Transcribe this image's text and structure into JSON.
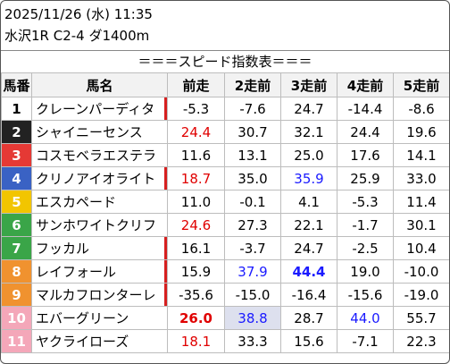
{
  "header": {
    "date_line": "2025/11/26 (水) 11:35",
    "race_line": "水沢1R C2-4 ダ1400m",
    "title": "＝＝＝スピード指数表＝＝＝"
  },
  "columns": [
    "馬番",
    "馬名",
    "前走",
    "2走前",
    "3走前",
    "4走前",
    "5走前"
  ],
  "rows": [
    {
      "num": "1",
      "name": "クレーンパーディタ",
      "bg": "#ffffff",
      "fg": "#000000",
      "mark": true,
      "vals": [
        {
          "v": "-5.3",
          "s": ""
        },
        {
          "v": "-7.6",
          "s": ""
        },
        {
          "v": "24.7",
          "s": ""
        },
        {
          "v": "-14.4",
          "s": ""
        },
        {
          "v": "-8.6",
          "s": ""
        }
      ]
    },
    {
      "num": "2",
      "name": "シャイニーセンス",
      "bg": "#222222",
      "fg": "#ffffff",
      "mark": false,
      "vals": [
        {
          "v": "24.4",
          "s": "red"
        },
        {
          "v": "30.7",
          "s": ""
        },
        {
          "v": "32.1",
          "s": ""
        },
        {
          "v": "24.4",
          "s": ""
        },
        {
          "v": "19.6",
          "s": ""
        }
      ]
    },
    {
      "num": "3",
      "name": "コスモベラエステラ",
      "bg": "#e53935",
      "fg": "#ffffff",
      "mark": false,
      "vals": [
        {
          "v": "11.6",
          "s": ""
        },
        {
          "v": "13.1",
          "s": ""
        },
        {
          "v": "25.0",
          "s": ""
        },
        {
          "v": "17.6",
          "s": ""
        },
        {
          "v": "14.1",
          "s": ""
        }
      ]
    },
    {
      "num": "4",
      "name": "クリノアイオライト",
      "bg": "#3a62c4",
      "fg": "#ffffff",
      "mark": true,
      "vals": [
        {
          "v": "18.7",
          "s": "red"
        },
        {
          "v": "35.0",
          "s": ""
        },
        {
          "v": "35.9",
          "s": "blue"
        },
        {
          "v": "25.9",
          "s": ""
        },
        {
          "v": "33.0",
          "s": ""
        }
      ]
    },
    {
      "num": "5",
      "name": "エスカペード",
      "bg": "#f2c500",
      "fg": "#ffffff",
      "mark": false,
      "vals": [
        {
          "v": "11.0",
          "s": ""
        },
        {
          "v": "-0.1",
          "s": ""
        },
        {
          "v": "4.1",
          "s": ""
        },
        {
          "v": "-5.3",
          "s": ""
        },
        {
          "v": "11.4",
          "s": ""
        }
      ]
    },
    {
      "num": "6",
      "name": "サンホワイトクリフ",
      "bg": "#3aa548",
      "fg": "#ffffff",
      "mark": false,
      "vals": [
        {
          "v": "24.6",
          "s": "red"
        },
        {
          "v": "27.3",
          "s": ""
        },
        {
          "v": "22.1",
          "s": ""
        },
        {
          "v": "-1.7",
          "s": ""
        },
        {
          "v": "30.1",
          "s": ""
        }
      ]
    },
    {
      "num": "7",
      "name": "フッカル",
      "bg": "#3aa548",
      "fg": "#ffffff",
      "mark": true,
      "vals": [
        {
          "v": "16.1",
          "s": ""
        },
        {
          "v": "-3.7",
          "s": ""
        },
        {
          "v": "24.7",
          "s": ""
        },
        {
          "v": "-2.5",
          "s": ""
        },
        {
          "v": "10.4",
          "s": ""
        }
      ]
    },
    {
      "num": "8",
      "name": "レイフォール",
      "bg": "#f0922f",
      "fg": "#ffffff",
      "mark": true,
      "vals": [
        {
          "v": "15.9",
          "s": ""
        },
        {
          "v": "37.9",
          "s": "blue"
        },
        {
          "v": "44.4",
          "s": "bluebold"
        },
        {
          "v": "19.0",
          "s": ""
        },
        {
          "v": "-10.0",
          "s": ""
        }
      ]
    },
    {
      "num": "9",
      "name": "マルカフロンターレ",
      "bg": "#f0922f",
      "fg": "#ffffff",
      "mark": true,
      "vals": [
        {
          "v": "-35.6",
          "s": ""
        },
        {
          "v": "-15.0",
          "s": ""
        },
        {
          "v": "-16.4",
          "s": ""
        },
        {
          "v": "-15.6",
          "s": ""
        },
        {
          "v": "-19.0",
          "s": ""
        }
      ]
    },
    {
      "num": "10",
      "name": "エバーグリーン",
      "bg": "#f4a7b9",
      "fg": "#ffffff",
      "mark": false,
      "vals": [
        {
          "v": "26.0",
          "s": "redbold"
        },
        {
          "v": "38.8",
          "s": "blue hl"
        },
        {
          "v": "28.7",
          "s": ""
        },
        {
          "v": "44.0",
          "s": "blue"
        },
        {
          "v": "55.7",
          "s": ""
        }
      ]
    },
    {
      "num": "11",
      "name": "ヤクライローズ",
      "bg": "#f4a7b9",
      "fg": "#ffffff",
      "mark": false,
      "vals": [
        {
          "v": "18.1",
          "s": "red"
        },
        {
          "v": "33.3",
          "s": ""
        },
        {
          "v": "15.6",
          "s": ""
        },
        {
          "v": "-7.1",
          "s": ""
        },
        {
          "v": "22.3",
          "s": ""
        }
      ]
    }
  ]
}
